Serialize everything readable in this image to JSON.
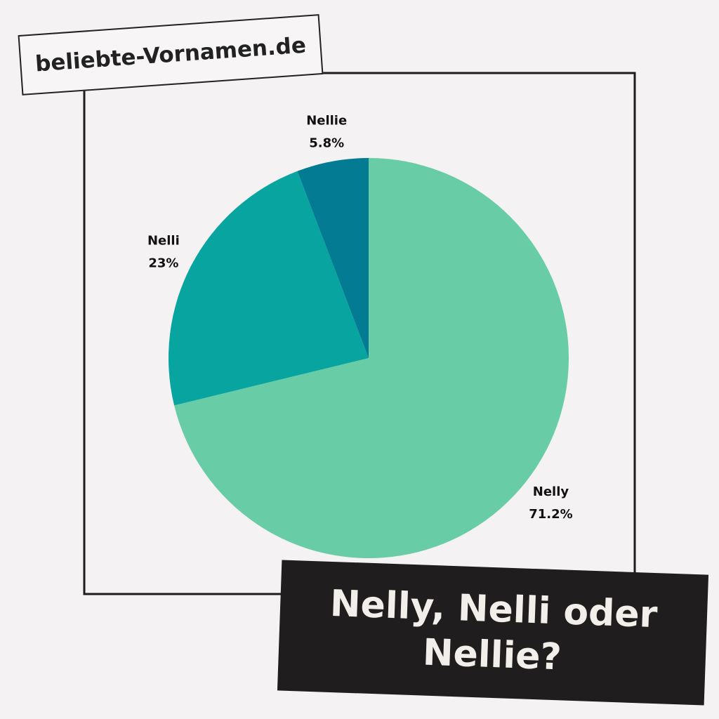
{
  "site": "beliebte-Vornamen.de",
  "chart_data": {
    "type": "pie",
    "title": "Nelly, Nelli oder Nellie?",
    "categories": [
      "Nelly",
      "Nelli",
      "Nellie"
    ],
    "values": [
      71.2,
      23,
      5.8
    ],
    "value_labels": [
      "71.2%",
      "23%",
      "5.8%"
    ],
    "colors": [
      "#68cda6",
      "#07a4a0",
      "#037c93"
    ]
  }
}
